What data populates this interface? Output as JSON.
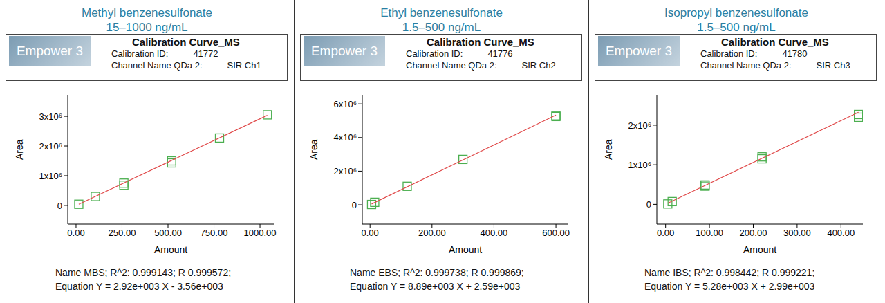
{
  "chart_data": [
    {
      "type": "scatter",
      "title": "Methyl benzenesulfonate",
      "subtitle": "15–1000 ng/mL",
      "logo": "Empower 3",
      "header_title": "Calibration Curve_MS",
      "header_lines": [
        [
          "Calibration ID:",
          "41772"
        ],
        [
          "Channel Name QDa 2:",
          "SIR Ch1"
        ]
      ],
      "x_label": "Amount",
      "y_label": "Area",
      "xlim": [
        -45,
        1075
      ],
      "xticks": [
        {
          "value": 0,
          "label": "0.00"
        },
        {
          "value": 250,
          "label": "250.00"
        },
        {
          "value": 500,
          "label": "500.00"
        },
        {
          "value": 750,
          "label": "750.00"
        },
        {
          "value": 1000,
          "label": "1000.00"
        }
      ],
      "ylim": [
        -630000,
        3700000
      ],
      "yticks": [
        0,
        {
          "value": 1000000,
          "label": "1x10⁶"
        },
        {
          "value": 2000000,
          "label": "2x10⁶"
        },
        {
          "value": 3000000,
          "label": "3x10⁶"
        }
      ],
      "series": [
        {
          "type": "scatter",
          "marker": "square",
          "color": "#4caf50",
          "x": [
            15,
            105,
            260,
            260,
            520,
            520,
            780,
            1040
          ],
          "values": [
            40000,
            300000,
            680000,
            750000,
            1430000,
            1500000,
            2270000,
            3050000
          ]
        },
        {
          "type": "line",
          "color": "#e04848",
          "x": [
            15,
            1040
          ],
          "values": [
            40000,
            3033000
          ]
        }
      ],
      "legend_text": [
        "Name MBS;  R^2: 0.999143; R 0.999572;",
        "Equation Y = 2.92e+003 X - 3.56e+003"
      ]
    },
    {
      "type": "scatter",
      "title": "Ethyl benzenesulfonate",
      "subtitle": "1.5–500 ng/mL",
      "logo": "Empower 3",
      "header_title": "Calibration Curve_MS",
      "header_lines": [
        [
          "Calibration ID:",
          "41776"
        ],
        [
          "Channel Name QDa 2:",
          "SIR Ch2"
        ]
      ],
      "x_label": "Amount",
      "y_label": "Area",
      "xlim": [
        -25,
        640
      ],
      "xticks": [
        {
          "value": 0,
          "label": "0.00"
        },
        {
          "value": 200,
          "label": "200.00"
        },
        {
          "value": 400,
          "label": "400.00"
        },
        {
          "value": 600,
          "label": "600.00"
        }
      ],
      "ylim": [
        -1150000,
        6500000
      ],
      "yticks": [
        0,
        {
          "value": 2000000,
          "label": "2x10⁶"
        },
        {
          "value": 4000000,
          "label": "4x10⁶"
        },
        {
          "value": 6000000,
          "label": "6x10⁶"
        }
      ],
      "series": [
        {
          "type": "scatter",
          "marker": "square",
          "color": "#4caf50",
          "x": [
            5,
            15,
            120,
            300,
            600,
            600
          ],
          "values": [
            20000,
            150000,
            1100000,
            2700000,
            5250000,
            5300000
          ]
        },
        {
          "type": "line",
          "color": "#e04848",
          "x": [
            5,
            600
          ],
          "values": [
            47000,
            5336000
          ]
        }
      ],
      "legend_text": [
        "Name EBS;  R^2: 0.999738; R 0.999869;",
        "Equation Y = 8.89e+003 X + 2.59e+003"
      ]
    },
    {
      "type": "scatter",
      "title": "Isopropyl benzenesulfonate",
      "subtitle": "1.5–500 ng/mL",
      "logo": "Empower 3",
      "header_title": "Calibration Curve_MS",
      "header_lines": [
        [
          "Calibration ID:",
          "41780"
        ],
        [
          "Channel Name QDa 2:",
          "SIR Ch3"
        ]
      ],
      "x_label": "Amount",
      "y_label": "Area",
      "xlim": [
        -20,
        450
      ],
      "xticks": [
        {
          "value": 0,
          "label": "0.00"
        },
        {
          "value": 100,
          "label": "100.00"
        },
        {
          "value": 200,
          "label": "200.00"
        },
        {
          "value": 300,
          "label": "300.00"
        },
        {
          "value": 400,
          "label": "400.00"
        }
      ],
      "ylim": [
        -500000,
        2750000
      ],
      "yticks": [
        0,
        {
          "value": 1000000,
          "label": "1x10⁶"
        },
        {
          "value": 2000000,
          "label": "2x10⁶"
        }
      ],
      "series": [
        {
          "type": "scatter",
          "marker": "square",
          "color": "#4caf50",
          "x": [
            5,
            15,
            90,
            90,
            220,
            220,
            440,
            440
          ],
          "values": [
            10000,
            70000,
            460000,
            490000,
            1150000,
            1200000,
            2200000,
            2270000
          ]
        },
        {
          "type": "line",
          "color": "#e04848",
          "x": [
            5,
            440
          ],
          "values": [
            29000,
            2326000
          ]
        }
      ],
      "legend_text": [
        "Name IBS;  R^2: 0.998442; R 0.999221;",
        "Equation Y = 5.28e+003 X + 2.99e+003"
      ]
    }
  ]
}
